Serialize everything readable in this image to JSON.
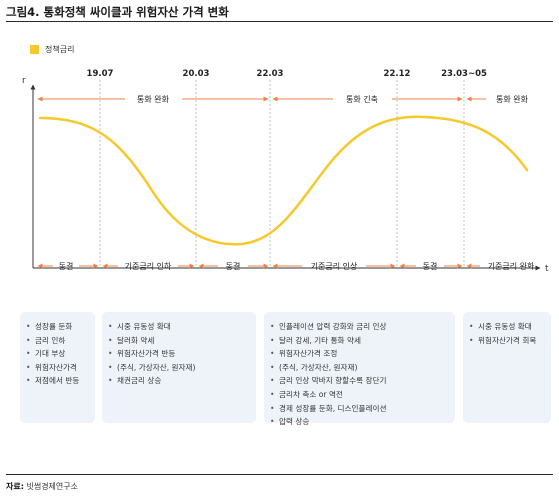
{
  "title": "그림4. 통화정책 싸이클과 위험자산 가격 변화",
  "legend": {
    "label": "정책금리",
    "color": "#f6c92a"
  },
  "axis": {
    "y_label": "r",
    "x_label": "t"
  },
  "dates": [
    "19.07",
    "20.03",
    "22.03",
    "22.12",
    "23.03~05"
  ],
  "phases_top": [
    "통화 완화",
    "통화 긴축",
    "통화 완화"
  ],
  "phases_bottom": [
    "동결",
    "기준금리 인하",
    "동결",
    "기준금리 인상",
    "동결",
    "기준금리 완화"
  ],
  "boxes": [
    [
      "성장률 둔화",
      "금리 인하",
      "기대 부상",
      "위험자산가격",
      "저점에서 반등"
    ],
    [
      "시중 유동성 확대",
      "달러화 약세",
      "위험자산가격 반등",
      "(주식, 가상자산, 원자재)",
      "채권금리 상승"
    ],
    [
      "인플레이션 압력 강화와 금리 인상",
      "달러 강세, 기타 통화 약세",
      "위험자산가격 조정",
      "(주식, 가상자산, 원자재)",
      "금리 인상 막바지 향할수록 장단기",
      "금리차 축소 or 역전",
      "경제 성장률 둔화, 디스인플레이션",
      "압력 상승"
    ],
    [
      "시중 유동성 확대",
      "위험자산가격 회복"
    ]
  ],
  "source": {
    "label": "자료:",
    "text": "빗썸경제연구소"
  },
  "colors": {
    "curve": "#f6c92a",
    "arrow": "#f0824a",
    "dashed": "#bfbfbf"
  }
}
